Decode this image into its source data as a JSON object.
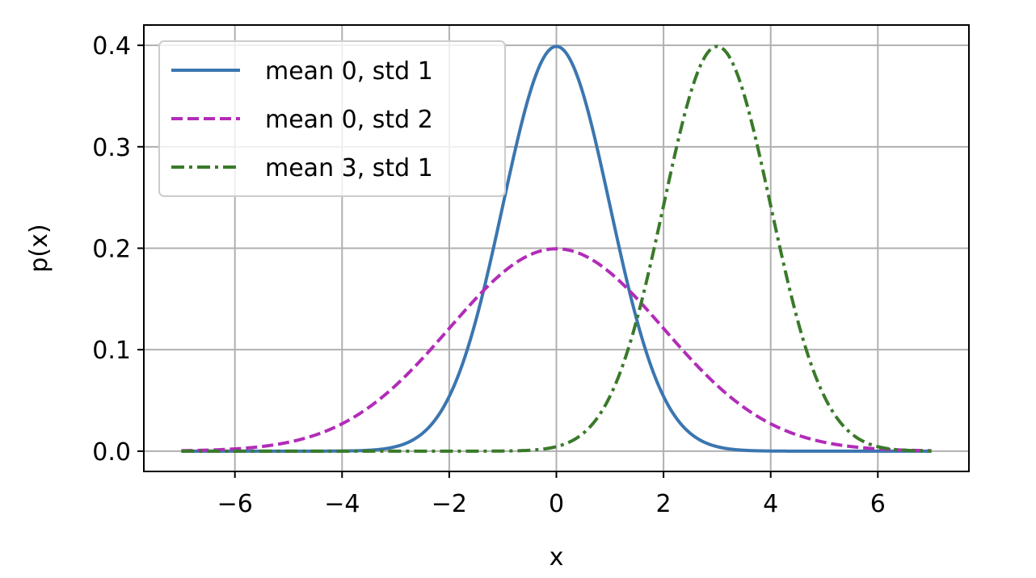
{
  "chart_data": {
    "type": "line",
    "title": "",
    "xlabel": "x",
    "ylabel": "p(x)",
    "xlim": [
      -7.7,
      7.7
    ],
    "ylim": [
      -0.02,
      0.42
    ],
    "x_ticks": [
      -6,
      -4,
      -2,
      0,
      2,
      4,
      6
    ],
    "x_tick_labels": [
      "−6",
      "−4",
      "−2",
      "0",
      "2",
      "4",
      "6"
    ],
    "y_ticks": [
      0.0,
      0.1,
      0.2,
      0.3,
      0.4
    ],
    "y_tick_labels": [
      "0.0",
      "0.1",
      "0.2",
      "0.3",
      "0.4"
    ],
    "grid": true,
    "legend_position": "upper-left",
    "x_range": [
      -7,
      7
    ],
    "series": [
      {
        "name": "mean 0, std 1",
        "mean": 0,
        "std": 1,
        "color": "#3b76b0",
        "style": "solid",
        "x": [
          -7,
          -6,
          -5,
          -4,
          -3,
          -2,
          -1,
          0,
          1,
          2,
          3,
          4,
          5,
          6,
          7
        ],
        "values": [
          0.0,
          0.0,
          0.0,
          0.0001,
          0.0044,
          0.054,
          0.242,
          0.3989,
          0.242,
          0.054,
          0.0044,
          0.0001,
          0.0,
          0.0,
          0.0
        ]
      },
      {
        "name": "mean 0, std 2",
        "mean": 0,
        "std": 2,
        "color": "#b22cb8",
        "style": "dashed",
        "x": [
          -7,
          -6,
          -5,
          -4,
          -3,
          -2,
          -1,
          0,
          1,
          2,
          3,
          4,
          5,
          6,
          7
        ],
        "values": [
          0.0004,
          0.0022,
          0.0088,
          0.027,
          0.0648,
          0.121,
          0.176,
          0.1995,
          0.176,
          0.121,
          0.0648,
          0.027,
          0.0088,
          0.0022,
          0.0004
        ]
      },
      {
        "name": "mean 3, std 1",
        "mean": 3,
        "std": 1,
        "color": "#3a7a2a",
        "style": "dashdot",
        "x": [
          -7,
          -6,
          -5,
          -4,
          -3,
          -2,
          -1,
          0,
          1,
          2,
          3,
          4,
          5,
          6,
          7
        ],
        "values": [
          0.0,
          0.0,
          0.0,
          0.0,
          0.0,
          0.0,
          0.0001,
          0.0044,
          0.054,
          0.242,
          0.3989,
          0.242,
          0.054,
          0.0044,
          0.0001
        ]
      }
    ]
  }
}
